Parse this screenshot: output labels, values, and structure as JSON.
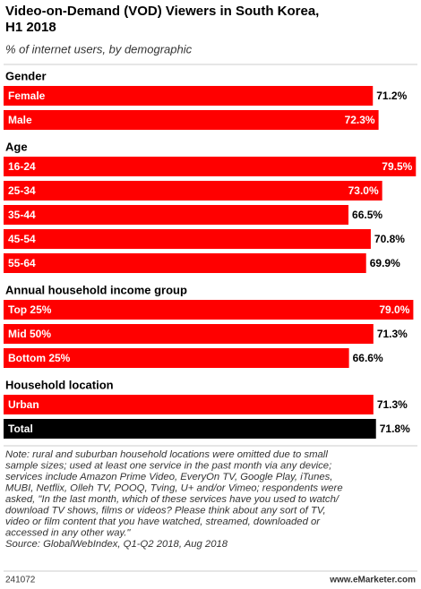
{
  "chart_data": {
    "type": "bar",
    "title": [
      "Video-on-Demand (VOD) Viewers in South Korea,",
      "H1 2018"
    ],
    "subtitle": "% of internet users, by demographic",
    "color": "#ff0000",
    "groups": [
      {
        "name": "Gender",
        "categories": [
          "Female",
          "Male"
        ],
        "values": [
          71.2,
          72.3
        ],
        "value_labels": [
          "71.2%",
          "72.3%"
        ]
      },
      {
        "name": "Age",
        "categories": [
          "16-24",
          "25-34",
          "35-44",
          "45-54",
          "55-64"
        ],
        "values": [
          79.5,
          73.0,
          66.5,
          70.8,
          69.9
        ],
        "value_labels": [
          "79.5%",
          "73.0%",
          "66.5%",
          "70.8%",
          "69.9%"
        ]
      },
      {
        "name": "Annual household income group",
        "categories": [
          "Top 25%",
          "Mid 50%",
          "Bottom 25%"
        ],
        "values": [
          79.0,
          71.3,
          66.6
        ],
        "value_labels": [
          "79.0%",
          "71.3%",
          "66.6%"
        ]
      },
      {
        "name": "Household location",
        "categories": [
          "Urban"
        ],
        "values": [
          71.3
        ],
        "value_labels": [
          "71.3%"
        ]
      }
    ],
    "total": {
      "category": "Total",
      "value": 71.8,
      "value_label": "71.8%",
      "color": "#000000"
    },
    "note": [
      "Note: rural and suburban household locations were omitted due to small",
      "sample sizes; used at least one service in the past month via any device;",
      "services include Amazon Prime Video, EveryOn TV, Google Play, iTunes,",
      "MUBI, Netflix, Olleh TV, POOQ, Tving, U+ and/or Vimeo; respondents were",
      "asked, \"In the last month, which of these services have you used to watch/",
      "download TV shows, films or videos? Please think about any sort of TV,",
      "video or film content that you have watched, streamed, downloaded or",
      "accessed in any other way.\""
    ],
    "source": "Source: GlobalWebIndex, Q1-Q2 2018, Aug 2018",
    "id": "241072",
    "brand": "www.eMarketer.com"
  }
}
